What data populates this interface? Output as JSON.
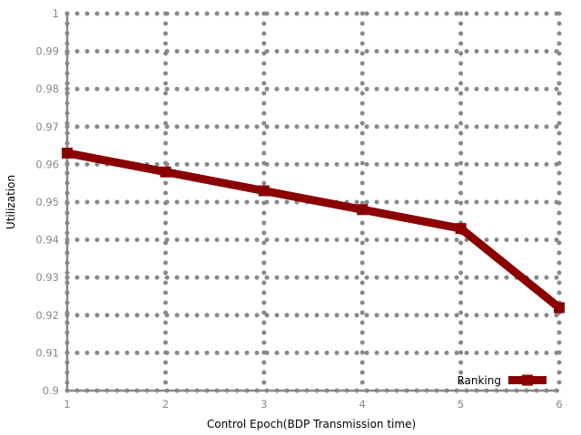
{
  "chart_data": {
    "type": "line",
    "title": "",
    "xlabel": "Control Epoch(BDP Transmission time)",
    "ylabel": "Utilization",
    "x_ticks": [
      "1",
      "2",
      "3",
      "4",
      "5",
      "6"
    ],
    "y_ticks": [
      "0.9",
      "0.91",
      "0.92",
      "0.93",
      "0.94",
      "0.95",
      "0.96",
      "0.97",
      "0.98",
      "0.99",
      "1"
    ],
    "xlim": [
      1,
      6
    ],
    "ylim": [
      0.9,
      1.0
    ],
    "grid": true,
    "legend_position": "bottom-right",
    "series": [
      {
        "name": "Ranking",
        "color": "#8b0000",
        "marker": "square",
        "x": [
          1,
          2,
          3,
          4,
          5,
          6
        ],
        "y": [
          0.963,
          0.958,
          0.953,
          0.948,
          0.943,
          0.922
        ]
      }
    ],
    "colors": {
      "grid": "#888888",
      "tick_label": "#888888",
      "axis_title": "#000000"
    }
  }
}
